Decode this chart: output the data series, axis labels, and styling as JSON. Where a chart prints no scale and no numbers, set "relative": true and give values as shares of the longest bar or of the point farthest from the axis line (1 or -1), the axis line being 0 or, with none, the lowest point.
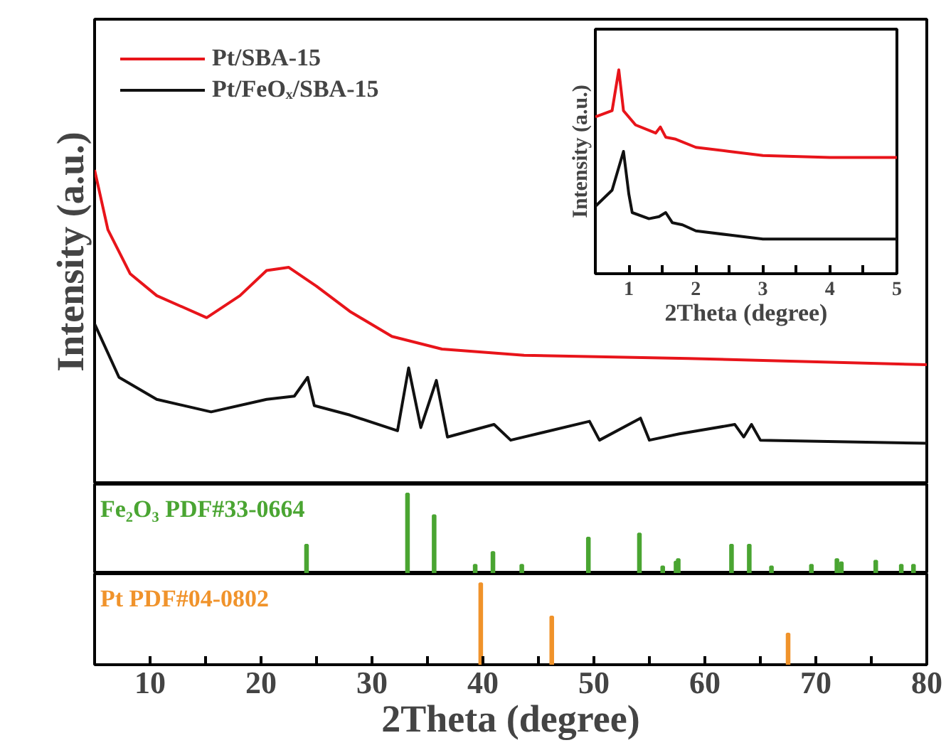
{
  "chart_data": [
    {
      "type": "line",
      "relative": true,
      "ylabel": "Intensity (a.u.)",
      "xlim": [
        5,
        80
      ],
      "tick_labels": false,
      "legend": "top left",
      "line_style": "solid",
      "marker": "none",
      "series": [
        {
          "name": "Pt/SBA-15",
          "color": "#e8141a",
          "x": [
            5,
            6.2,
            8.2,
            10.6,
            15.1,
            18.1,
            20.5,
            22.5,
            25,
            28,
            31.8,
            36.3,
            43.7,
            58.5,
            80
          ],
          "values": [
            1.0,
            0.81,
            0.67,
            0.6,
            0.53,
            0.6,
            0.68,
            0.69,
            0.63,
            0.55,
            0.47,
            0.43,
            0.41,
            0.4,
            0.38
          ]
        },
        {
          "name": "Pt/FeOₓ/SBA-15",
          "color": "#111111",
          "x": [
            5,
            7.2,
            10.6,
            15.5,
            20.5,
            23,
            24.2,
            24.8,
            28,
            32.3,
            33.3,
            34.4,
            35.8,
            36.8,
            41,
            42.5,
            49.6,
            50.5,
            54.2,
            55,
            57.7,
            62.7,
            63.5,
            64.2,
            65,
            80
          ],
          "values": [
            0.51,
            0.34,
            0.27,
            0.23,
            0.27,
            0.28,
            0.34,
            0.25,
            0.22,
            0.17,
            0.37,
            0.18,
            0.33,
            0.15,
            0.19,
            0.14,
            0.2,
            0.14,
            0.21,
            0.14,
            0.16,
            0.19,
            0.15,
            0.19,
            0.14,
            0.13
          ]
        }
      ]
    },
    {
      "type": "bar",
      "relative": true,
      "title": "Fe₂O₃ PDF#33-0664",
      "xlim": [
        5,
        80
      ],
      "tick_labels": false,
      "color": "#4aa532",
      "x": [
        24.1,
        33.2,
        35.6,
        39.3,
        40.9,
        43.5,
        49.5,
        54.1,
        56.2,
        57.4,
        57.6,
        62.4,
        64.0,
        66.0,
        69.6,
        71.9,
        72.3,
        75.4,
        77.7,
        78.8
      ],
      "values": [
        0.36,
        1.0,
        0.73,
        0.11,
        0.27,
        0.11,
        0.45,
        0.5,
        0.09,
        0.15,
        0.18,
        0.36,
        0.36,
        0.09,
        0.11,
        0.18,
        0.14,
        0.16,
        0.11,
        0.11
      ]
    },
    {
      "type": "bar",
      "relative": true,
      "title": "Pt PDF#04-0802",
      "xlim": [
        5,
        80
      ],
      "tick_labels": "x",
      "xlabel": "2Theta (degree)",
      "color": "#f0932b",
      "xticks": [
        10,
        {
          "value": 15,
          "label": null
        },
        20,
        {
          "value": 25,
          "label": null
        },
        30,
        {
          "value": 35,
          "label": null
        },
        40,
        {
          "value": 45,
          "label": null
        },
        50,
        {
          "value": 55,
          "label": null
        },
        60,
        {
          "value": 65,
          "label": null
        },
        70,
        {
          "value": 75,
          "label": null
        },
        80
      ],
      "x": [
        39.8,
        46.2,
        67.5
      ],
      "values": [
        1.0,
        0.59,
        0.38
      ]
    },
    {
      "type": "line",
      "relative": true,
      "xlabel": "2Theta (degree)",
      "ylabel": "Intensity (a.u.)",
      "xlim": [
        0.5,
        5
      ],
      "tick_labels": "x",
      "line_style": "solid",
      "marker": "none",
      "xticks": [
        1,
        {
          "value": 1.5,
          "label": null
        },
        2,
        {
          "value": 2.5,
          "label": null
        },
        3,
        {
          "value": 3.5,
          "label": null
        },
        4,
        {
          "value": 4.5,
          "label": null
        },
        5
      ],
      "series": [
        {
          "color": "#e8141a",
          "x": [
            0.5,
            0.75,
            0.85,
            0.92,
            1.1,
            1.4,
            1.47,
            1.55,
            1.7,
            2.0,
            2.5,
            3.0,
            4.0,
            5.0
          ],
          "values": [
            0.77,
            0.8,
            1.0,
            0.8,
            0.73,
            0.69,
            0.72,
            0.67,
            0.66,
            0.62,
            0.6,
            0.58,
            0.57,
            0.57
          ]
        },
        {
          "color": "#111111",
          "x": [
            0.5,
            0.75,
            0.92,
            1.0,
            1.05,
            1.3,
            1.45,
            1.55,
            1.65,
            1.8,
            2.0,
            2.5,
            3.0,
            4.0,
            5.0
          ],
          "values": [
            0.33,
            0.41,
            0.6,
            0.39,
            0.3,
            0.27,
            0.28,
            0.3,
            0.25,
            0.24,
            0.21,
            0.19,
            0.17,
            0.17,
            0.17
          ]
        }
      ]
    }
  ]
}
